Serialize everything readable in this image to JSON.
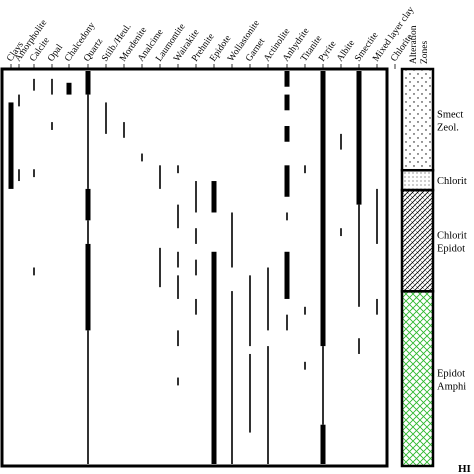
{
  "minerals": [
    {
      "name": "Clays",
      "segments": [
        [
          0.08,
          0.3,
          "thick"
        ]
      ]
    },
    {
      "name": "Amorpholite",
      "segments": [
        [
          0.06,
          0.09,
          "thin"
        ],
        [
          0.25,
          0.28,
          "thin"
        ]
      ]
    },
    {
      "name": "Calcite",
      "segments": [
        [
          0.02,
          0.05,
          "dot"
        ],
        [
          0.25,
          0.27,
          "dot"
        ],
        [
          0.5,
          0.52,
          "dot"
        ]
      ]
    },
    {
      "name": "Opal",
      "segments": [
        [
          0.02,
          0.06,
          "thin"
        ],
        [
          0.13,
          0.15,
          "dot"
        ]
      ]
    },
    {
      "name": "Chalcedony",
      "segments": [
        [
          0.03,
          0.06,
          "thick"
        ]
      ]
    },
    {
      "name": "Quartz",
      "segments": [
        [
          0.0,
          0.06,
          "thick"
        ],
        [
          0.06,
          0.3,
          "thin"
        ],
        [
          0.3,
          0.38,
          "thick"
        ],
        [
          0.38,
          0.44,
          "thin"
        ],
        [
          0.44,
          0.66,
          "thick"
        ],
        [
          0.66,
          1.0,
          "thin"
        ]
      ]
    },
    {
      "name": "Stilb./Heul.",
      "segments": [
        [
          0.08,
          0.16,
          "thin"
        ]
      ]
    },
    {
      "name": "Mordenite",
      "segments": [
        [
          0.13,
          0.17,
          "thin"
        ]
      ]
    },
    {
      "name": "Analcime",
      "segments": [
        [
          0.21,
          0.23,
          "dot"
        ]
      ]
    },
    {
      "name": "Laumontite",
      "segments": [
        [
          0.24,
          0.3,
          "thin"
        ],
        [
          0.45,
          0.55,
          "thin"
        ]
      ]
    },
    {
      "name": "Wairakite",
      "segments": [
        [
          0.24,
          0.26,
          "thin"
        ],
        [
          0.34,
          0.4,
          "thin"
        ],
        [
          0.46,
          0.5,
          "thin"
        ],
        [
          0.52,
          0.58,
          "thin"
        ],
        [
          0.66,
          0.7,
          "thin"
        ],
        [
          0.78,
          0.8,
          "thin"
        ]
      ]
    },
    {
      "name": "Prehnite",
      "segments": [
        [
          0.28,
          0.36,
          "thin"
        ],
        [
          0.4,
          0.44,
          "thin"
        ],
        [
          0.48,
          0.52,
          "thin"
        ],
        [
          0.58,
          0.62,
          "dot"
        ]
      ]
    },
    {
      "name": "Epidote",
      "segments": [
        [
          0.28,
          0.36,
          "thick"
        ],
        [
          0.46,
          1.0,
          "thick"
        ]
      ]
    },
    {
      "name": "Wollastonite",
      "segments": [
        [
          0.36,
          0.5,
          "thin"
        ],
        [
          0.56,
          1.0,
          "thin"
        ]
      ]
    },
    {
      "name": "Garnet",
      "segments": [
        [
          0.52,
          0.7,
          "thin"
        ],
        [
          0.72,
          0.92,
          "thin"
        ]
      ]
    },
    {
      "name": "Actinolite",
      "segments": [
        [
          0.5,
          0.66,
          "thin"
        ],
        [
          0.7,
          1.0,
          "thin"
        ]
      ]
    },
    {
      "name": "Anhydrite",
      "segments": [
        [
          0.0,
          0.04,
          "thick"
        ],
        [
          0.06,
          0.1,
          "thick"
        ],
        [
          0.14,
          0.18,
          "thick"
        ],
        [
          0.24,
          0.32,
          "thick"
        ],
        [
          0.36,
          0.38,
          "thin"
        ],
        [
          0.46,
          0.58,
          "thick"
        ],
        [
          0.62,
          0.66,
          "thin"
        ]
      ]
    },
    {
      "name": "Titanite",
      "segments": [
        [
          0.24,
          0.26,
          "thin"
        ],
        [
          0.6,
          0.62,
          "thin"
        ],
        [
          0.74,
          0.76,
          "thin"
        ]
      ]
    },
    {
      "name": "Pyrite",
      "segments": [
        [
          0.0,
          0.7,
          "thick"
        ],
        [
          0.7,
          0.9,
          "thin"
        ],
        [
          0.9,
          1.0,
          "thick"
        ]
      ]
    },
    {
      "name": "Albite",
      "segments": [
        [
          0.16,
          0.2,
          "thin"
        ],
        [
          0.4,
          0.42,
          "dot"
        ]
      ]
    },
    {
      "name": "Smectite",
      "segments": [
        [
          0.0,
          0.34,
          "thick"
        ],
        [
          0.34,
          0.6,
          "thin"
        ],
        [
          0.68,
          0.72,
          "dot"
        ]
      ]
    },
    {
      "name": "Mixed layer clay",
      "segments": [
        [
          0.3,
          0.44,
          "thin"
        ],
        [
          0.58,
          0.62,
          "thin"
        ]
      ]
    },
    {
      "name": "Chlorite",
      "segments": [
        [
          0.4,
          0.46,
          "thin"
        ],
        [
          0.48,
          1.0,
          "thick"
        ]
      ]
    }
  ],
  "zones_header": "Alteration Zones",
  "zones": [
    {
      "name": "Smectite-Zeolite",
      "line1": "Smect",
      "line2": "Zeol.",
      "start": 0.0,
      "end": 0.255,
      "pattern": "dots"
    },
    {
      "name": "Chlorite",
      "line1": "Chlorit",
      "line2": "",
      "start": 0.255,
      "end": 0.305,
      "pattern": "fine"
    },
    {
      "name": "Chlorite-Epidote",
      "line1": "Chlorit",
      "line2": "Epidot",
      "start": 0.305,
      "end": 0.56,
      "pattern": "hatch"
    },
    {
      "name": "Epidote-Amphibole",
      "line1": "Epidot",
      "line2": "Amphi",
      "start": 0.56,
      "end": 1.0,
      "pattern": "green"
    }
  ],
  "footer_text": "HI",
  "colors": {
    "ink": "#000000",
    "green_hatch": "#2eb82e",
    "background": "#ffffff"
  }
}
